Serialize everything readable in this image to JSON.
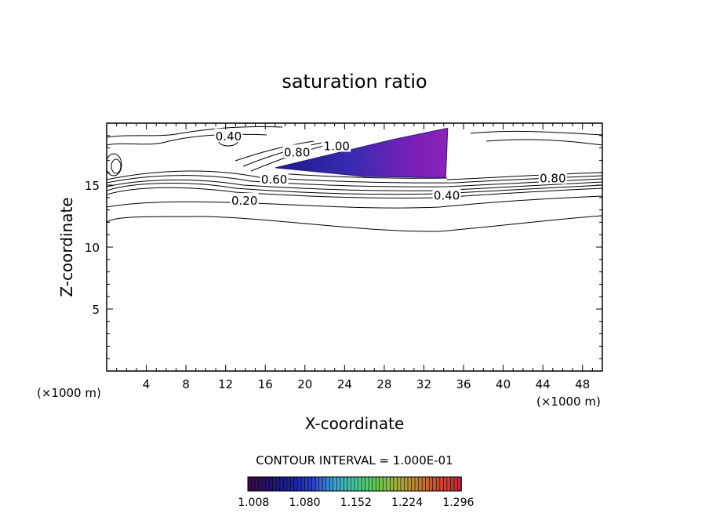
{
  "chart_data": {
    "type": "contour",
    "title": "saturation ratio",
    "xlabel": "X-coordinate",
    "ylabel": "Z-coordinate",
    "x_unit": "(×1000 m)",
    "z_unit": "(×1000 m)",
    "xlim": [
      0,
      50
    ],
    "ylim": [
      0,
      20
    ],
    "x_ticks": [
      4,
      8,
      12,
      16,
      20,
      24,
      28,
      32,
      36,
      40,
      44,
      48
    ],
    "y_ticks": [
      5,
      10,
      15
    ],
    "contour_interval_text": "CONTOUR INTERVAL = 1.000E-01",
    "contour_labels": [
      {
        "text": "0.20",
        "x": 13.9,
        "z": 13.8
      },
      {
        "text": "0.40",
        "x": 34.3,
        "z": 14.2
      },
      {
        "text": "0.40",
        "x": 12.3,
        "z": 19.0
      },
      {
        "text": "0.60",
        "x": 16.9,
        "z": 15.5
      },
      {
        "text": "0.80",
        "x": 45.0,
        "z": 15.6
      },
      {
        "text": "0.80",
        "x": 19.2,
        "z": 17.7
      },
      {
        "text": "1.00",
        "x": 23.2,
        "z": 18.2
      }
    ],
    "shaded_region": {
      "description_level": "saturation ratio > 1.0",
      "vertices": [
        [
          17,
          16.4
        ],
        [
          29,
          18.7
        ],
        [
          34.4,
          19.6
        ],
        [
          34.2,
          15.6
        ],
        [
          26,
          15.7
        ]
      ]
    },
    "colorbar": {
      "ticks": [
        "1.008",
        "1.080",
        "1.152",
        "1.224",
        "1.296"
      ],
      "range": [
        1.0,
        1.3
      ],
      "colors": [
        "#3a0a4a",
        "#23146e",
        "#1a22a0",
        "#2a3ed0",
        "#3aa0d0",
        "#45c69a",
        "#5fcc50",
        "#a0b040",
        "#c08030",
        "#d04a30",
        "#c02a3a"
      ]
    }
  }
}
